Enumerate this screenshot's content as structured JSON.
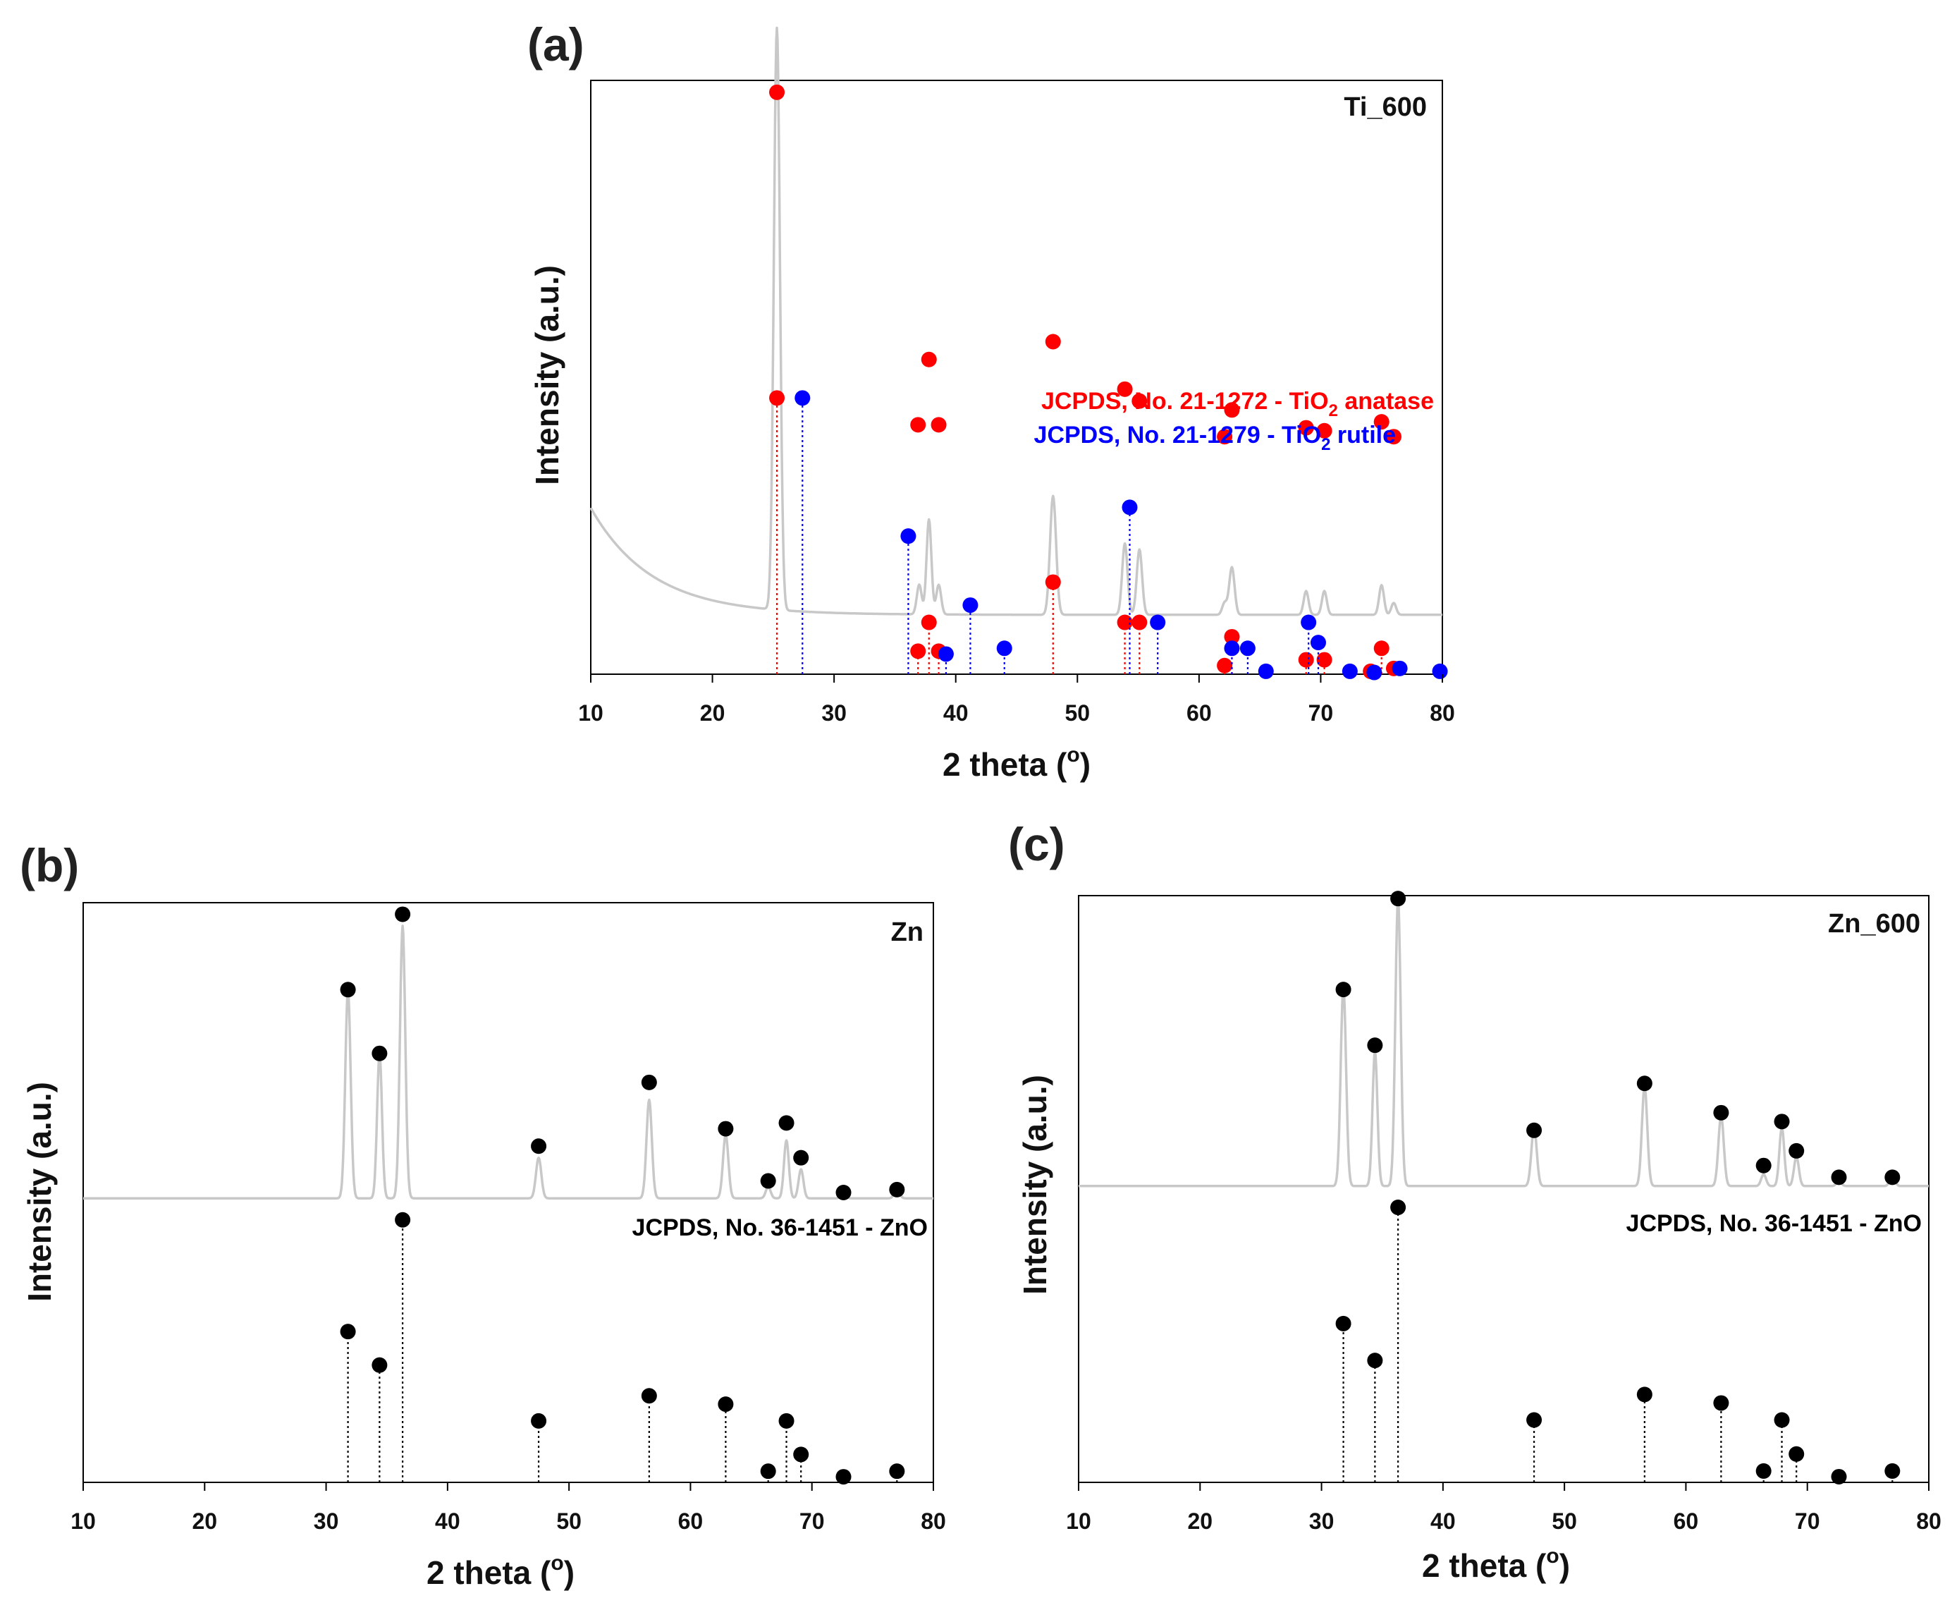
{
  "chart_data": [
    {
      "type": "line",
      "panel_label": "(a)",
      "sample_label": "Ti_600",
      "xlabel": "2 theta (",
      "xlabel_degree": "o",
      "xlabel_close": ")",
      "ylabel": "Intensity (a.u.)",
      "xlim": [
        10,
        80
      ],
      "xticks": [
        "10",
        "20",
        "30",
        "40",
        "50",
        "60",
        "70",
        "80"
      ],
      "pattern": {
        "color": "#c8c8c8",
        "baseline": 0.1,
        "start_rise": 0.18,
        "decay": 5,
        "peaks": [
          {
            "x": 25.3,
            "h": 0.98,
            "w": 0.25
          },
          {
            "x": 37.0,
            "h": 0.05,
            "w": 0.2
          },
          {
            "x": 37.8,
            "h": 0.16,
            "w": 0.2
          },
          {
            "x": 38.6,
            "h": 0.05,
            "w": 0.2
          },
          {
            "x": 48.0,
            "h": 0.2,
            "w": 0.25
          },
          {
            "x": 53.9,
            "h": 0.12,
            "w": 0.22
          },
          {
            "x": 55.1,
            "h": 0.11,
            "w": 0.22
          },
          {
            "x": 62.1,
            "h": 0.02,
            "w": 0.2
          },
          {
            "x": 62.7,
            "h": 0.08,
            "w": 0.22
          },
          {
            "x": 68.8,
            "h": 0.04,
            "w": 0.2
          },
          {
            "x": 70.3,
            "h": 0.04,
            "w": 0.2
          },
          {
            "x": 75.0,
            "h": 0.05,
            "w": 0.2
          },
          {
            "x": 76.0,
            "h": 0.02,
            "w": 0.2
          }
        ]
      },
      "observed_markers": [
        {
          "x": 25.3,
          "y": 0.98,
          "c": "#ff0000"
        },
        {
          "x": 36.9,
          "y": 0.42,
          "c": "#ff0000"
        },
        {
          "x": 37.8,
          "y": 0.53,
          "c": "#ff0000"
        },
        {
          "x": 38.6,
          "y": 0.42,
          "c": "#ff0000"
        },
        {
          "x": 48.0,
          "y": 0.56,
          "c": "#ff0000"
        },
        {
          "x": 53.9,
          "y": 0.48,
          "c": "#ff0000"
        },
        {
          "x": 55.1,
          "y": 0.46,
          "c": "#ff0000"
        },
        {
          "x": 62.1,
          "y": 0.4,
          "c": "#ff0000"
        },
        {
          "x": 62.7,
          "y": 0.445,
          "c": "#ff0000"
        },
        {
          "x": 68.8,
          "y": 0.415,
          "c": "#ff0000"
        },
        {
          "x": 70.3,
          "y": 0.41,
          "c": "#ff0000"
        },
        {
          "x": 75.0,
          "y": 0.425,
          "c": "#ff0000"
        },
        {
          "x": 76.0,
          "y": 0.4,
          "c": "#ff0000"
        }
      ],
      "references": [
        {
          "prefix": "JCPDS, No. 21-1272 - TiO",
          "subscript": "2",
          "suffix": " anatase",
          "color": "#ff0000",
          "sticks": [
            {
              "x": 25.3,
              "y": 0.48
            },
            {
              "x": 36.9,
              "y": 0.04
            },
            {
              "x": 37.8,
              "y": 0.09
            },
            {
              "x": 38.6,
              "y": 0.04
            },
            {
              "x": 48.0,
              "y": 0.16
            },
            {
              "x": 53.9,
              "y": 0.09
            },
            {
              "x": 55.1,
              "y": 0.09
            },
            {
              "x": 62.1,
              "y": 0.015
            },
            {
              "x": 62.7,
              "y": 0.065
            },
            {
              "x": 68.8,
              "y": 0.025
            },
            {
              "x": 70.3,
              "y": 0.025
            },
            {
              "x": 74.1,
              "y": 0.005
            },
            {
              "x": 75.0,
              "y": 0.045
            },
            {
              "x": 76.0,
              "y": 0.01
            }
          ]
        },
        {
          "prefix": "JCPDS, No. 21-1279 - TiO",
          "subscript": "2",
          "suffix": " rutile",
          "color": "#0000ff",
          "sticks": [
            {
              "x": 27.4,
              "y": 0.48
            },
            {
              "x": 36.1,
              "y": 0.24
            },
            {
              "x": 39.2,
              "y": 0.035
            },
            {
              "x": 41.2,
              "y": 0.12
            },
            {
              "x": 44.0,
              "y": 0.045
            },
            {
              "x": 54.3,
              "y": 0.29
            },
            {
              "x": 56.6,
              "y": 0.09
            },
            {
              "x": 62.7,
              "y": 0.045
            },
            {
              "x": 64.0,
              "y": 0.045
            },
            {
              "x": 65.5,
              "y": 0.005
            },
            {
              "x": 69.0,
              "y": 0.09
            },
            {
              "x": 69.8,
              "y": 0.055
            },
            {
              "x": 72.4,
              "y": 0.005
            },
            {
              "x": 74.4,
              "y": 0.003
            },
            {
              "x": 76.5,
              "y": 0.01
            },
            {
              "x": 79.8,
              "y": 0.005
            }
          ]
        }
      ]
    },
    {
      "type": "line",
      "panel_label": "(b)",
      "sample_label": "Zn",
      "xlabel": "2 theta (",
      "xlabel_degree": "o",
      "xlabel_close": ")",
      "ylabel": "Intensity (a.u.)",
      "xlim": [
        10,
        80
      ],
      "xticks": [
        "10",
        "20",
        "30",
        "40",
        "50",
        "60",
        "70",
        "80"
      ],
      "pattern": {
        "color": "#c8c8c8",
        "baseline": 0.49,
        "start_rise": 0.0,
        "decay": 5,
        "peaks": [
          {
            "x": 31.8,
            "h": 0.36,
            "w": 0.22
          },
          {
            "x": 34.4,
            "h": 0.25,
            "w": 0.2
          },
          {
            "x": 36.3,
            "h": 0.47,
            "w": 0.22
          },
          {
            "x": 47.5,
            "h": 0.07,
            "w": 0.22
          },
          {
            "x": 56.6,
            "h": 0.17,
            "w": 0.22
          },
          {
            "x": 62.9,
            "h": 0.11,
            "w": 0.22
          },
          {
            "x": 66.4,
            "h": 0.02,
            "w": 0.2
          },
          {
            "x": 67.9,
            "h": 0.1,
            "w": 0.2
          },
          {
            "x": 69.1,
            "h": 0.05,
            "w": 0.2
          },
          {
            "x": 72.6,
            "h": 0.008,
            "w": 0.2
          },
          {
            "x": 77.0,
            "h": 0.02,
            "w": 0.2
          }
        ]
      },
      "observed_markers": [
        {
          "x": 31.8,
          "y": 0.85,
          "c": "#000000"
        },
        {
          "x": 34.4,
          "y": 0.74,
          "c": "#000000"
        },
        {
          "x": 36.3,
          "y": 0.98,
          "c": "#000000"
        },
        {
          "x": 47.5,
          "y": 0.58,
          "c": "#000000"
        },
        {
          "x": 56.6,
          "y": 0.69,
          "c": "#000000"
        },
        {
          "x": 62.9,
          "y": 0.61,
          "c": "#000000"
        },
        {
          "x": 66.4,
          "y": 0.52,
          "c": "#000000"
        },
        {
          "x": 67.9,
          "y": 0.62,
          "c": "#000000"
        },
        {
          "x": 69.1,
          "y": 0.56,
          "c": "#000000"
        },
        {
          "x": 72.6,
          "y": 0.5,
          "c": "#000000"
        },
        {
          "x": 77.0,
          "y": 0.505,
          "c": "#000000"
        }
      ],
      "references": [
        {
          "prefix": "JCPDS, No. 36-1451 - ZnO",
          "subscript": "",
          "suffix": "",
          "color": "#000000",
          "sticks": [
            {
              "x": 31.8,
              "y": 0.27
            },
            {
              "x": 34.4,
              "y": 0.21
            },
            {
              "x": 36.3,
              "y": 0.47
            },
            {
              "x": 47.5,
              "y": 0.11
            },
            {
              "x": 56.6,
              "y": 0.155
            },
            {
              "x": 62.9,
              "y": 0.14
            },
            {
              "x": 66.4,
              "y": 0.02
            },
            {
              "x": 67.9,
              "y": 0.11
            },
            {
              "x": 69.1,
              "y": 0.05
            },
            {
              "x": 72.6,
              "y": 0.01
            },
            {
              "x": 77.0,
              "y": 0.02
            }
          ]
        }
      ]
    },
    {
      "type": "line",
      "panel_label": "(c)",
      "sample_label": "Zn_600",
      "xlabel": "2 theta (",
      "xlabel_degree": "o",
      "xlabel_close": ")",
      "ylabel": "Intensity (a.u.)",
      "xlim": [
        10,
        80
      ],
      "xticks": [
        "10",
        "20",
        "30",
        "40",
        "50",
        "60",
        "70",
        "80"
      ],
      "pattern": {
        "color": "#c8c8c8",
        "baseline": 0.505,
        "start_rise": 0.0,
        "decay": 5,
        "peaks": [
          {
            "x": 31.8,
            "h": 0.34,
            "w": 0.22
          },
          {
            "x": 34.4,
            "h": 0.23,
            "w": 0.2
          },
          {
            "x": 36.3,
            "h": 0.49,
            "w": 0.22
          },
          {
            "x": 47.5,
            "h": 0.1,
            "w": 0.22
          },
          {
            "x": 56.6,
            "h": 0.17,
            "w": 0.22
          },
          {
            "x": 62.9,
            "h": 0.12,
            "w": 0.22
          },
          {
            "x": 66.4,
            "h": 0.02,
            "w": 0.2
          },
          {
            "x": 67.9,
            "h": 0.1,
            "w": 0.2
          },
          {
            "x": 69.1,
            "h": 0.05,
            "w": 0.2
          },
          {
            "x": 72.6,
            "h": 0.008,
            "w": 0.2
          },
          {
            "x": 77.0,
            "h": 0.02,
            "w": 0.2
          }
        ]
      },
      "observed_markers": [
        {
          "x": 31.8,
          "y": 0.84,
          "c": "#000000"
        },
        {
          "x": 34.4,
          "y": 0.745,
          "c": "#000000"
        },
        {
          "x": 36.3,
          "y": 0.995,
          "c": "#000000"
        },
        {
          "x": 47.5,
          "y": 0.6,
          "c": "#000000"
        },
        {
          "x": 56.6,
          "y": 0.68,
          "c": "#000000"
        },
        {
          "x": 62.9,
          "y": 0.63,
          "c": "#000000"
        },
        {
          "x": 66.4,
          "y": 0.54,
          "c": "#000000"
        },
        {
          "x": 67.9,
          "y": 0.615,
          "c": "#000000"
        },
        {
          "x": 69.1,
          "y": 0.565,
          "c": "#000000"
        },
        {
          "x": 72.6,
          "y": 0.52,
          "c": "#000000"
        },
        {
          "x": 77.0,
          "y": 0.52,
          "c": "#000000"
        }
      ],
      "references": [
        {
          "prefix": "JCPDS, No. 36-1451 - ZnO",
          "subscript": "",
          "suffix": "",
          "color": "#000000",
          "sticks": [
            {
              "x": 31.8,
              "y": 0.28
            },
            {
              "x": 34.4,
              "y": 0.215
            },
            {
              "x": 36.3,
              "y": 0.485
            },
            {
              "x": 47.5,
              "y": 0.11
            },
            {
              "x": 56.6,
              "y": 0.155
            },
            {
              "x": 62.9,
              "y": 0.14
            },
            {
              "x": 66.4,
              "y": 0.02
            },
            {
              "x": 67.9,
              "y": 0.11
            },
            {
              "x": 69.1,
              "y": 0.05
            },
            {
              "x": 72.6,
              "y": 0.01
            },
            {
              "x": 77.0,
              "y": 0.02
            }
          ]
        }
      ]
    }
  ]
}
